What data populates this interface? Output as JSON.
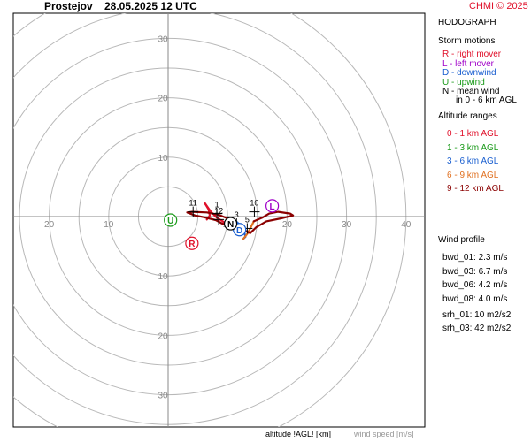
{
  "header": {
    "station": "Prostejov",
    "datetime": "28.05.2025 12 UTC",
    "copyright": "CHMI © 2025"
  },
  "panel": {
    "title": "HODOGRAPH",
    "storm_title": "Storm motions",
    "storm_items": [
      {
        "text": "R - right mover",
        "color": "#e0102a"
      },
      {
        "text": "L - left mover",
        "color": "#a000c8"
      },
      {
        "text": "D - downwind",
        "color": "#1a5fd0"
      },
      {
        "text": "U - upwind",
        "color": "#1a9a1a"
      },
      {
        "text": "N - mean wind",
        "color": "#000000"
      }
    ],
    "mean_wind_note": "in 0 - 6 km AGL",
    "alt_title": "Altitude ranges",
    "alt_items": [
      {
        "text": "0 - 1 km AGL",
        "color": "#e0102a"
      },
      {
        "text": "1 - 3 km AGL",
        "color": "#1a9a1a"
      },
      {
        "text": "3 - 6 km AGL",
        "color": "#1a5fd0"
      },
      {
        "text": "6 - 9 km AGL",
        "color": "#e07020"
      },
      {
        "text": "9 - 12 km AGL",
        "color": "#8b0000"
      }
    ],
    "profile_title": "Wind profile",
    "profile_items": [
      "bwd_01: 2.3 m/s",
      "bwd_03: 6.7 m/s",
      "bwd_06: 4.2 m/s",
      "bwd_08: 4.0 m/s"
    ],
    "srh_items": [
      "srh_01: 10 m2/s2",
      "srh_03: 42 m2/s2"
    ]
  },
  "footer": {
    "altitude_label": "altitude !AGL! [km]",
    "speed_label": "wind speed [m/s]"
  },
  "chart_data": {
    "type": "hodograph",
    "xlim": [
      -25,
      40
    ],
    "ylim": [
      -35,
      35
    ],
    "rings": [
      5,
      10,
      15,
      20,
      25,
      30,
      35,
      40
    ],
    "ring_labels_up": [
      "10",
      "20",
      "30"
    ],
    "ring_labels_down": [
      "10",
      "20",
      "30"
    ],
    "ring_labels_left": [
      "10",
      "20"
    ],
    "ring_labels_right": [
      "10",
      "20",
      "30",
      "40"
    ],
    "series": [
      {
        "color": "#e0102a",
        "points": [
          [
            6.5,
            -0.5
          ],
          [
            7,
            0.2
          ],
          [
            6.8,
            1.2
          ],
          [
            6.2,
            2.2
          ]
        ]
      },
      {
        "color": "#e0102a",
        "points": [
          [
            6.2,
            2.2
          ],
          [
            7.2,
            0.8
          ],
          [
            8.2,
            -0.2
          ],
          [
            9.2,
            -0.8
          ],
          [
            9.8,
            -1.5
          ]
        ]
      },
      {
        "color": "#1a9a1a",
        "points": [
          [
            9.8,
            -1.5
          ],
          [
            10.8,
            -1.2
          ],
          [
            11.5,
            -0.9
          ]
        ]
      },
      {
        "color": "#1a5fd0",
        "points": [
          [
            11.5,
            -0.9
          ],
          [
            12.3,
            -1.6
          ],
          [
            12.8,
            -2.6
          ],
          [
            13.0,
            -3.4
          ],
          [
            12.6,
            -3.8
          ]
        ]
      },
      {
        "color": "#e07020",
        "points": [
          [
            12.6,
            -3.8
          ],
          [
            13.4,
            -2.8
          ],
          [
            14.0,
            -1.6
          ],
          [
            14.4,
            -0.8
          ]
        ]
      },
      {
        "color": "#8b0000",
        "points": [
          [
            14.4,
            -0.8
          ],
          [
            15.8,
            -0.2
          ],
          [
            17.0,
            0.5
          ],
          [
            18.5,
            0.8
          ],
          [
            20.5,
            0.5
          ],
          [
            21,
            0.2
          ],
          [
            19.0,
            -0.3
          ],
          [
            16.5,
            -0.8
          ],
          [
            14.8,
            -1.8
          ],
          [
            13.8,
            -2.8
          ],
          [
            12.2,
            -2.0
          ],
          [
            10.5,
            -0.5
          ],
          [
            8.5,
            0.3
          ],
          [
            6.5,
            0.7
          ],
          [
            4.0,
            0.8
          ],
          [
            3.2,
            0.7
          ],
          [
            4.5,
            0.2
          ],
          [
            6.0,
            -0.1
          ],
          [
            8.0,
            -0.6
          ],
          [
            9.5,
            -1.4
          ]
        ]
      }
    ],
    "height_markers": [
      {
        "label": "11",
        "x": 4.2,
        "y": 0.8
      },
      {
        "label": "1",
        "x": 8.2,
        "y": 0.5
      },
      {
        "label": "12",
        "x": 8.5,
        "y": -0.5
      },
      {
        "label": "10",
        "x": 14.5,
        "y": 0.8
      },
      {
        "label": "3",
        "x": 11.5,
        "y": -1.2
      },
      {
        "label": "5",
        "x": 13.3,
        "y": -2.0
      }
    ],
    "storm_points": [
      {
        "label": "R",
        "x": 4.0,
        "y": -4.5,
        "color": "#e0102a"
      },
      {
        "label": "L",
        "x": 17.5,
        "y": 1.8,
        "color": "#a000c8"
      },
      {
        "label": "D",
        "x": 12.0,
        "y": -2.2,
        "color": "#1a5fd0"
      },
      {
        "label": "U",
        "x": 0.4,
        "y": -0.6,
        "color": "#1a9a1a"
      },
      {
        "label": "N",
        "x": 10.5,
        "y": -1.2,
        "color": "#000000"
      }
    ]
  }
}
